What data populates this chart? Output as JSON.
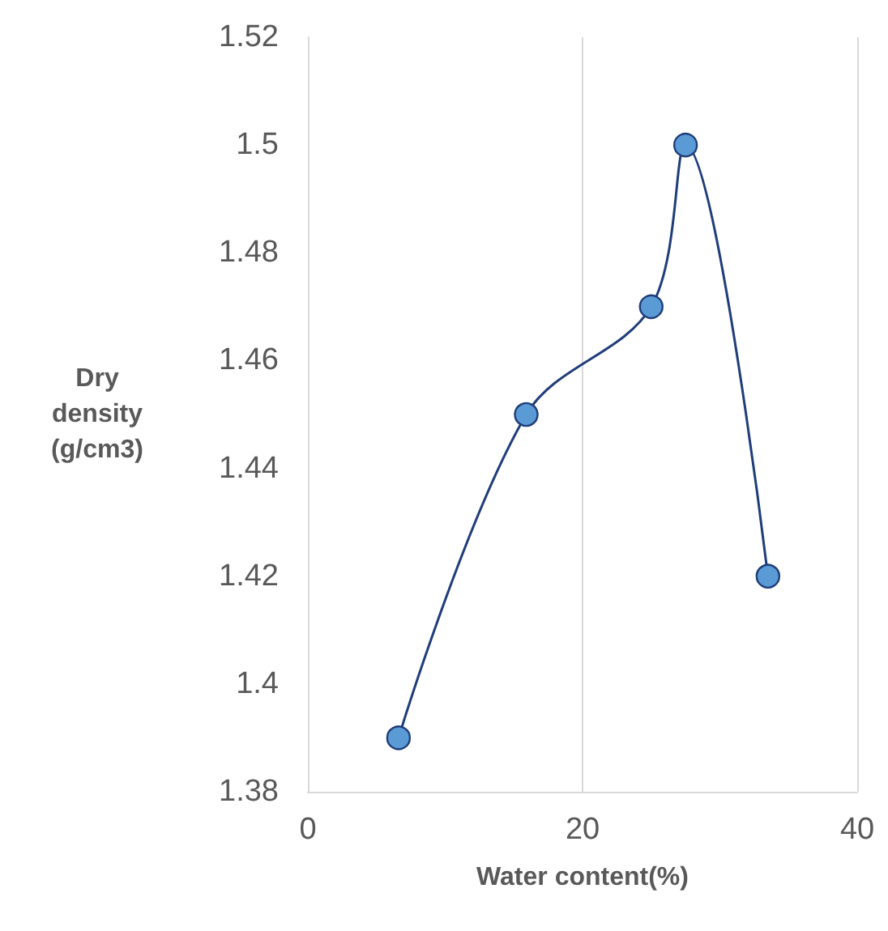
{
  "chart_data": {
    "type": "line",
    "xlabel": "Water content(%)",
    "ylabel": "Dry density (g/cm3)",
    "x": [
      6.6,
      15.9,
      25.0,
      27.5,
      33.5
    ],
    "series": [
      {
        "color": "#1f3d7a",
        "values": [
          1.39,
          1.45,
          1.47,
          1.5,
          1.42
        ]
      }
    ],
    "xlim": [
      0,
      40
    ],
    "xticks": [
      0,
      20,
      40
    ],
    "ylim": [
      1.38,
      1.52
    ],
    "yticks": [
      1.38,
      1.4,
      1.42,
      1.44,
      1.46,
      1.48,
      1.5,
      1.52
    ],
    "grid": "x",
    "marker": "circle",
    "line_style": "solid"
  }
}
